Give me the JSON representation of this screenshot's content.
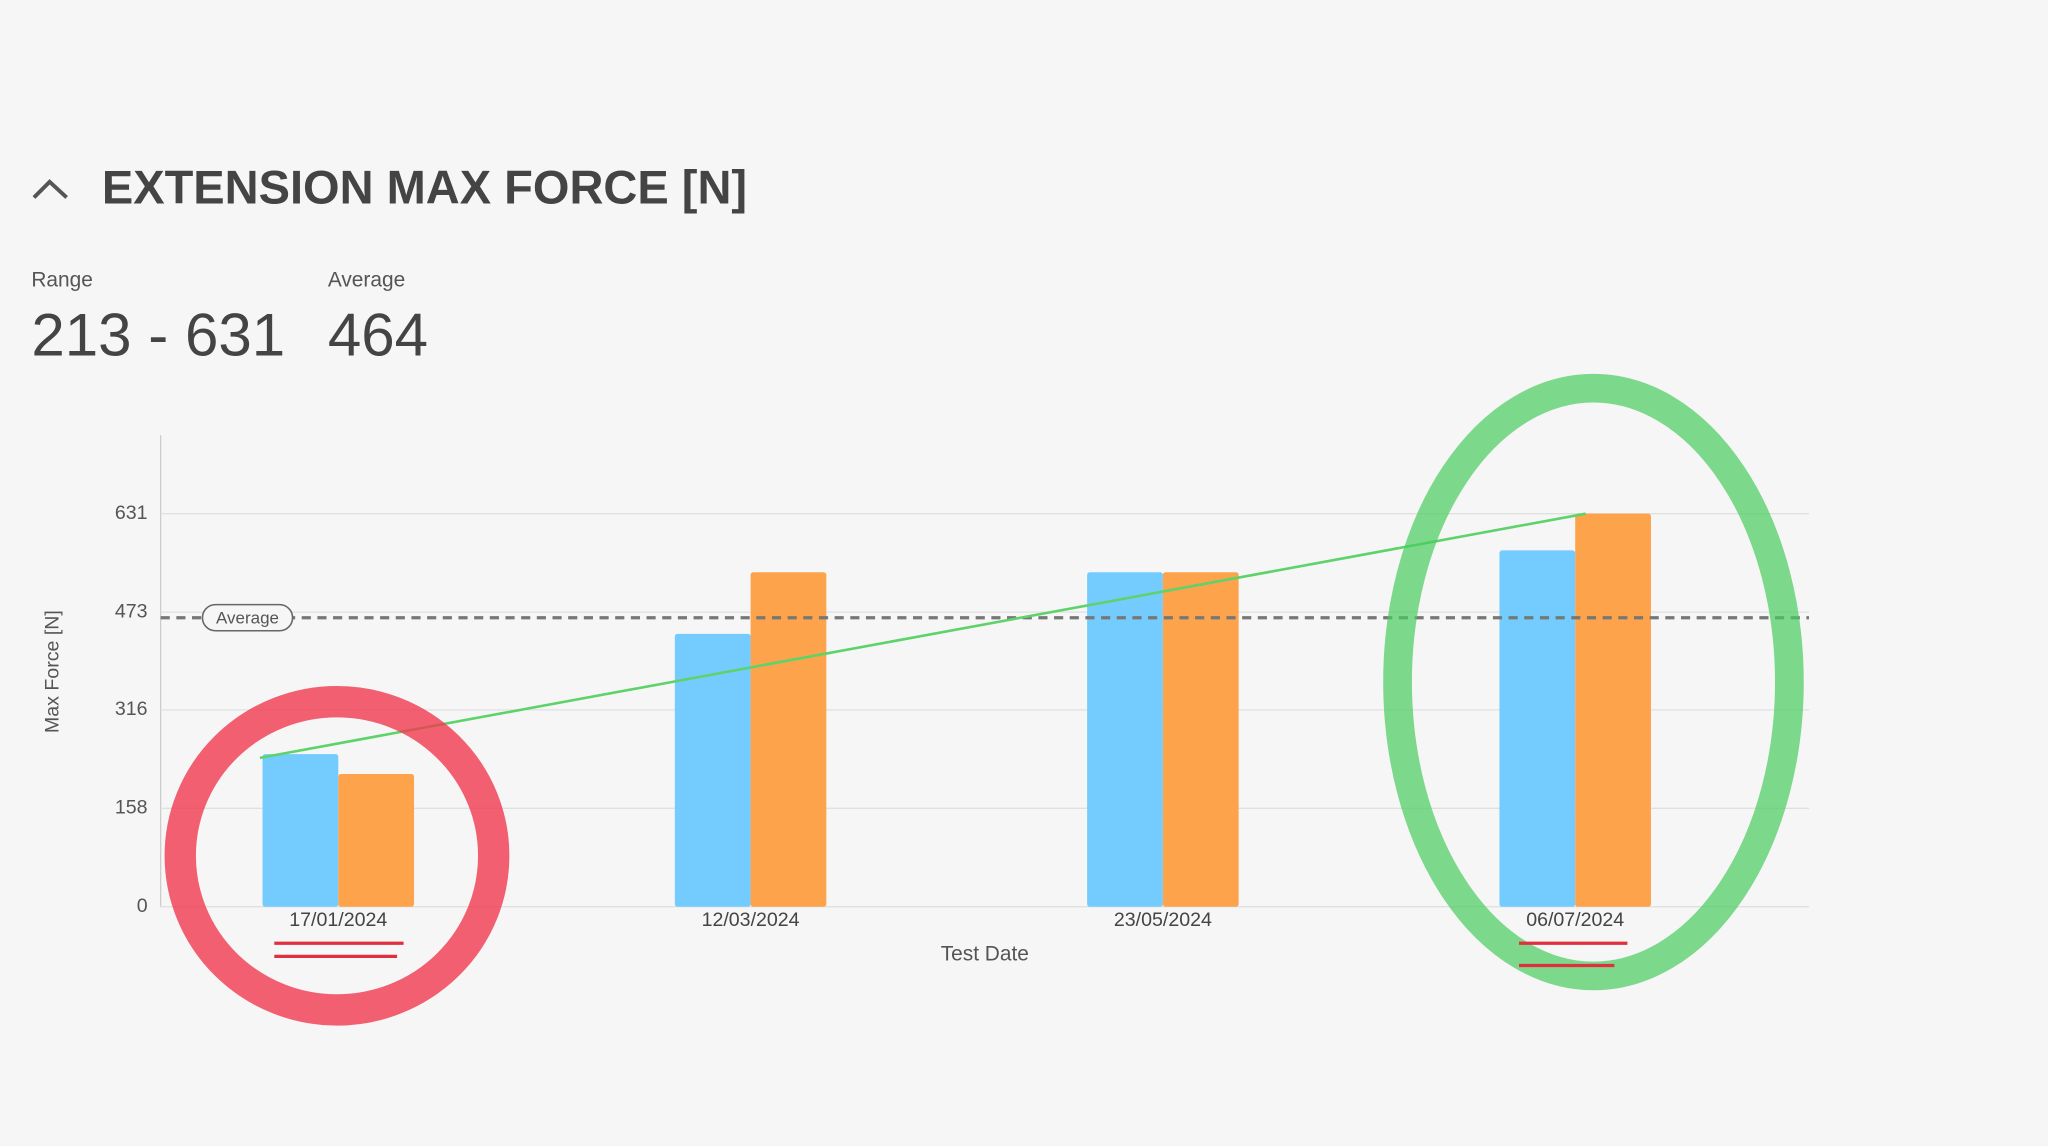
{
  "header": {
    "title": "EXTENSION MAX FORCE [N]",
    "range_label": "Range",
    "range": "213 - 631",
    "average_label": "Average",
    "average": "464"
  },
  "chart_data": {
    "type": "bar",
    "categories": [
      "17/01/2024",
      "12/03/2024",
      "23/05/2024",
      "06/07/2024"
    ],
    "series": [
      {
        "color": "#74cbfd",
        "values": [
          245,
          438,
          537,
          572
        ]
      },
      {
        "color": "#fda34b",
        "values": [
          213,
          537,
          537,
          631
        ]
      }
    ],
    "ylim": [
      0,
      757
    ],
    "yticks": [
      0,
      158,
      316,
      473,
      631
    ],
    "grid": true,
    "x_label": "Test Date",
    "y_label": "Max Force [N]",
    "average": {
      "label": "Average",
      "value": 464
    },
    "trend": {
      "color": "#5dd36a",
      "values": [
        239,
        631
      ]
    }
  }
}
